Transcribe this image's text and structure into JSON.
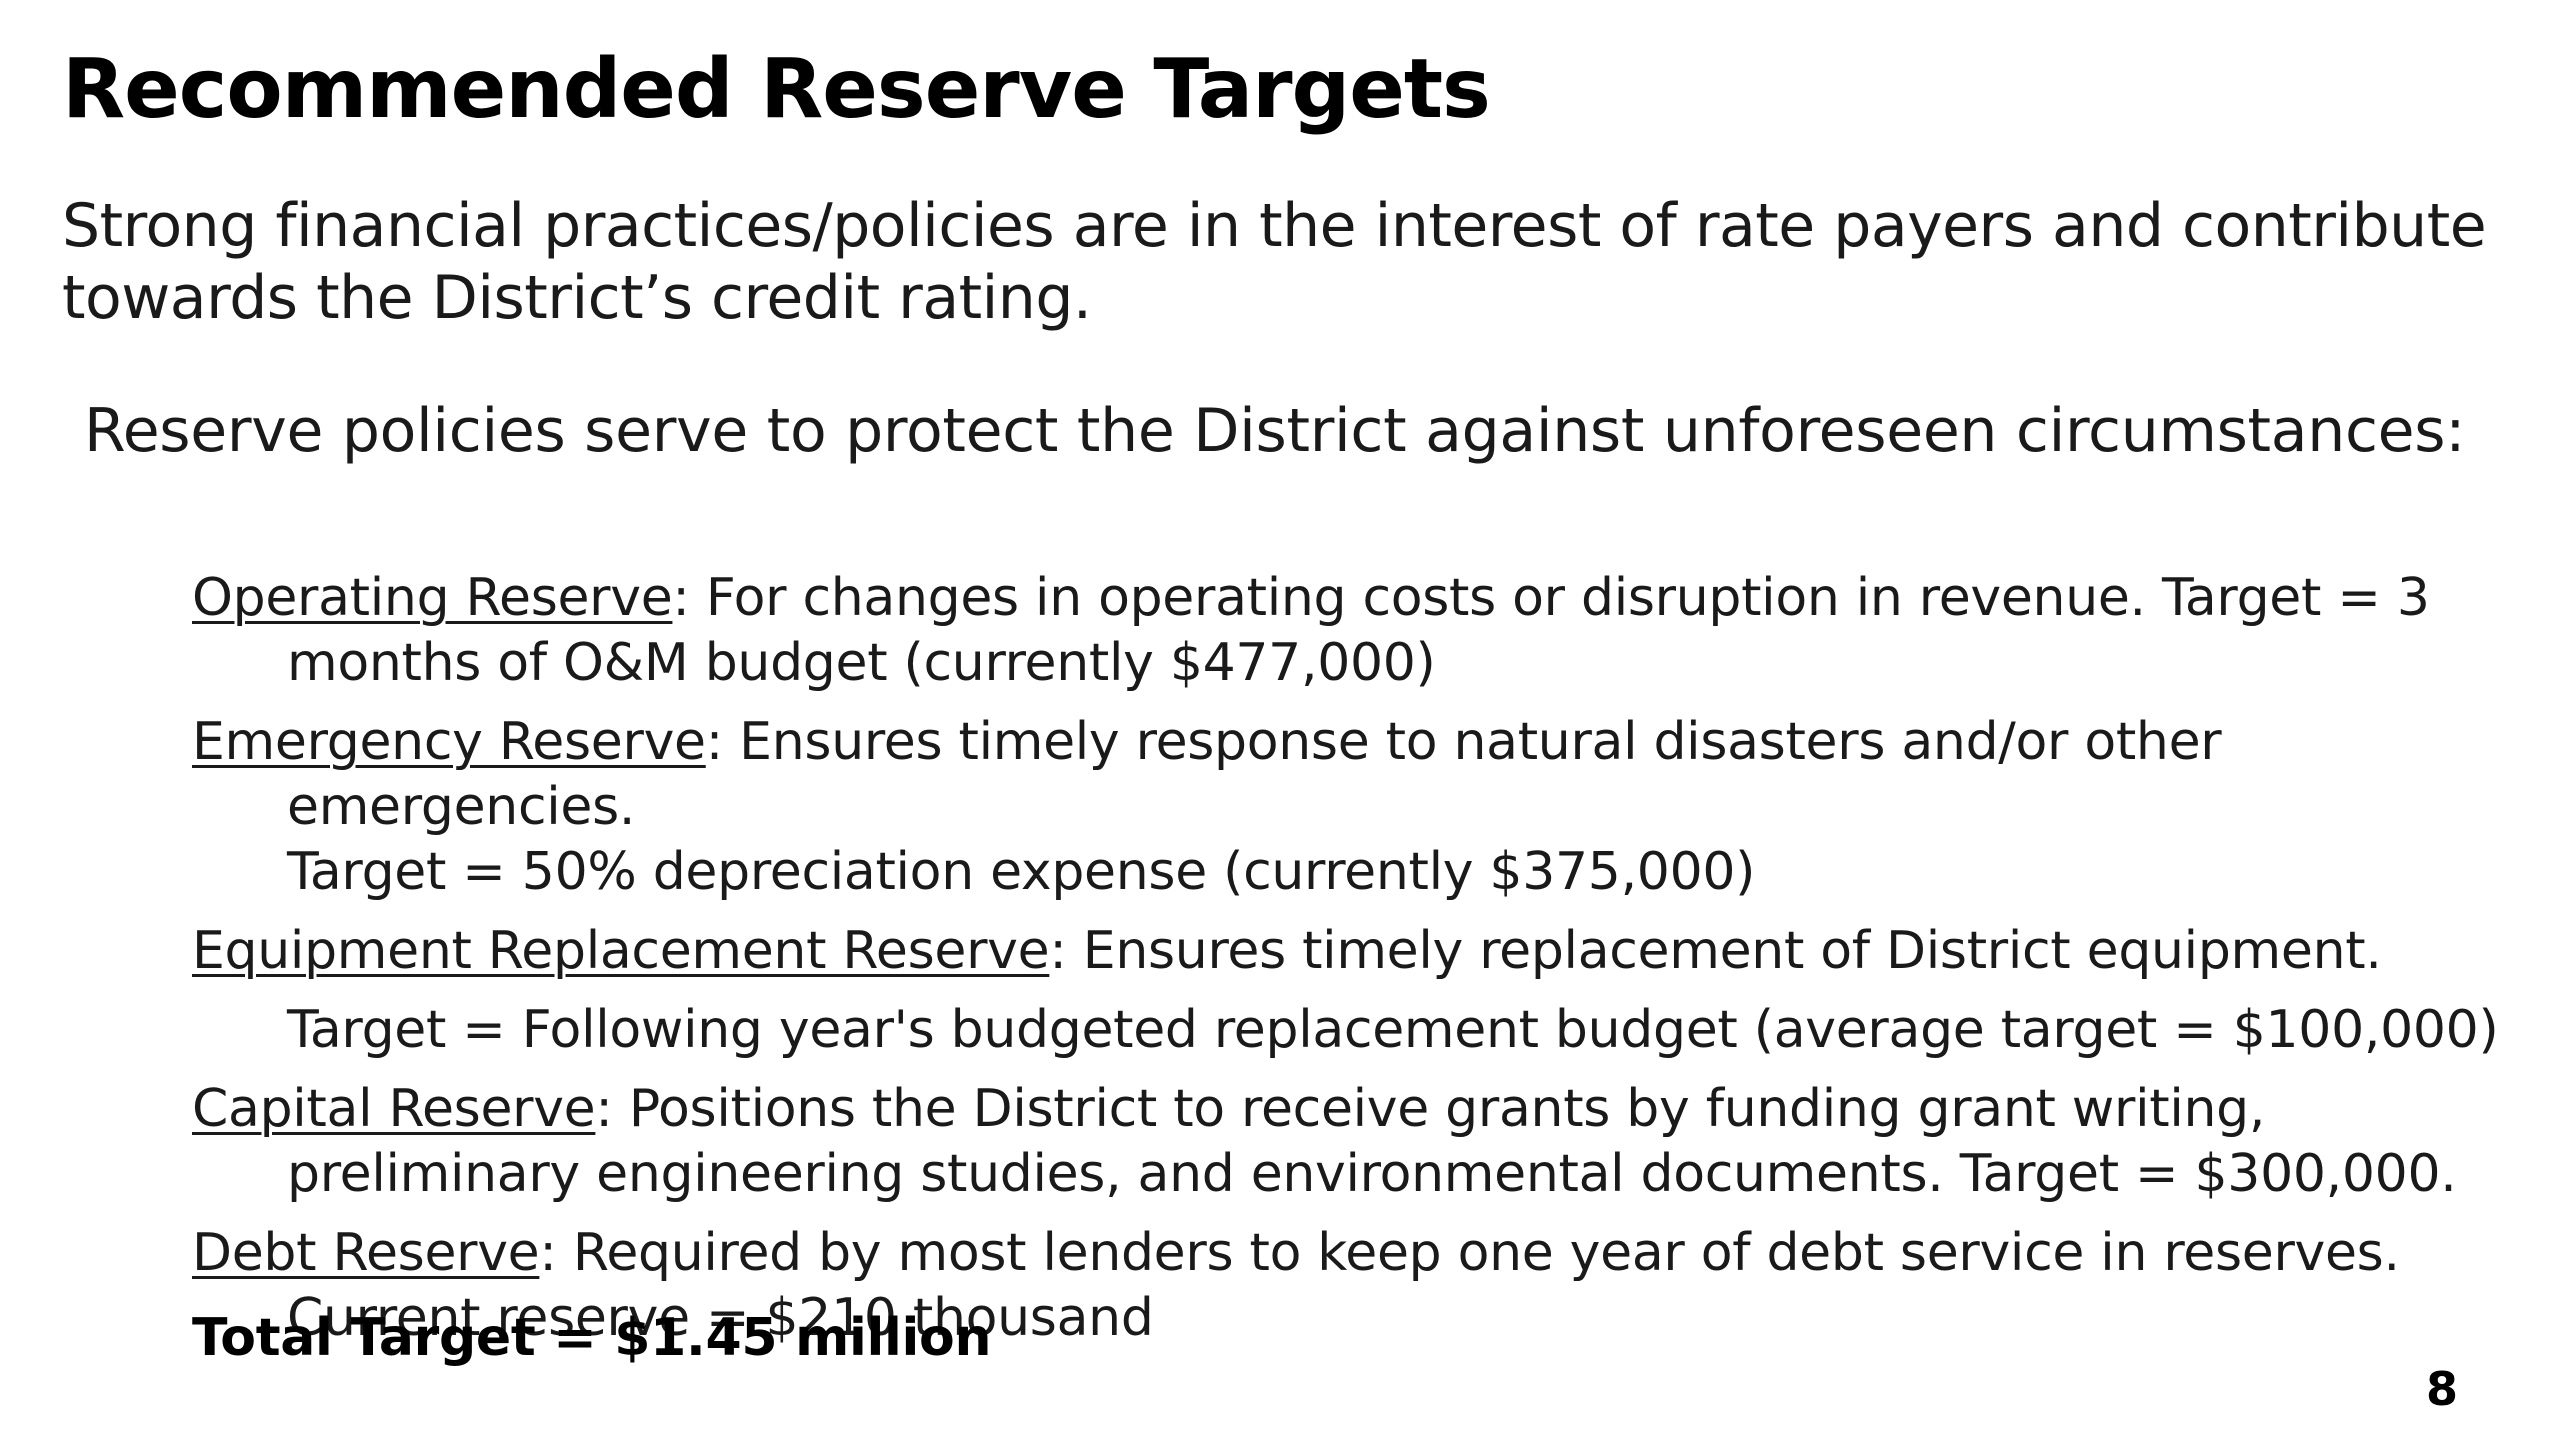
{
  "slide": {
    "title": "Recommended Reserve Targets",
    "intro": "Strong financial practices/policies are in the interest of rate payers and contribute towards the District’s credit rating.",
    "lead": "Reserve policies serve to protect the District against unforeseen circumstances:",
    "reserves": [
      {
        "name": "Operating Reserve",
        "description": ": For changes in operating costs or disruption in revenue. Target = 3 months of O&M budget (currently $477,000)"
      },
      {
        "name": "Emergency Reserve",
        "description": ": Ensures timely response to natural disasters and/or other emergencies.",
        "target": "Target = 50% depreciation expense (currently $375,000)"
      },
      {
        "name": "Equipment Replacement Reserve",
        "description": ": Ensures timely replacement of District equipment.",
        "target": "Target = Following year's budgeted replacement budget (average target = $100,000)"
      },
      {
        "name": "Capital Reserve",
        "description": ": Positions the District to receive grants by funding grant writing, preliminary engineering studies, and environmental documents.  Target =  $300,000."
      },
      {
        "name": "Debt Reserve",
        "description": ": Required by most lenders to keep one year of debt service in reserves.",
        "target": "Current reserve =  $210 thousand"
      }
    ],
    "total": "Total Target = $1.45 million",
    "page_number": "8"
  }
}
